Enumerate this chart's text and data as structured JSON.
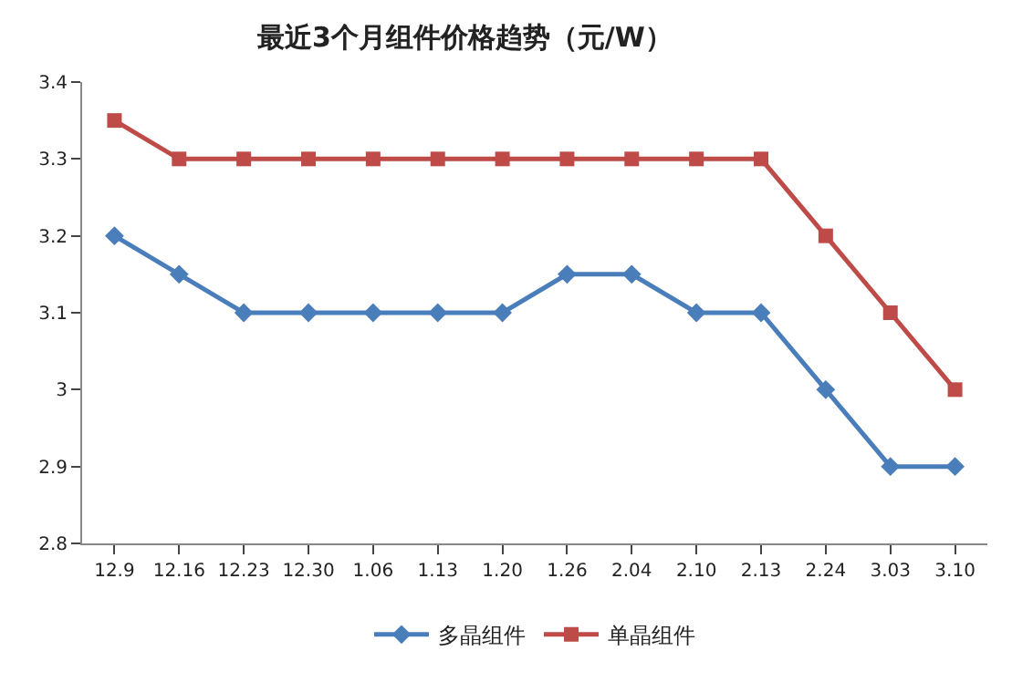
{
  "chart_data": {
    "type": "line",
    "title": "最近3个月组件价格趋势（元/W）",
    "categories": [
      "12.9",
      "12.16",
      "12.23",
      "12.30",
      "1.06",
      "1.13",
      "1.20",
      "1.26",
      "2.04",
      "2.10",
      "2.13",
      "2.24",
      "3.03",
      "3.10"
    ],
    "series": [
      {
        "name": "多晶组件",
        "color": "#4a7ebb",
        "marker": "diamond",
        "values": [
          3.2,
          3.15,
          3.1,
          3.1,
          3.1,
          3.1,
          3.1,
          3.15,
          3.15,
          3.1,
          3.1,
          3.0,
          2.9,
          2.9
        ]
      },
      {
        "name": "单晶组件",
        "color": "#be4b48",
        "marker": "square",
        "values": [
          3.35,
          3.3,
          3.3,
          3.3,
          3.3,
          3.3,
          3.3,
          3.3,
          3.3,
          3.3,
          3.3,
          3.2,
          3.1,
          3.0
        ]
      }
    ],
    "ylim": [
      2.8,
      3.4
    ],
    "yticks": [
      2.8,
      2.9,
      3,
      3.1,
      3.2,
      3.3,
      3.4
    ],
    "legend": "bottom",
    "line_style": "solid"
  }
}
